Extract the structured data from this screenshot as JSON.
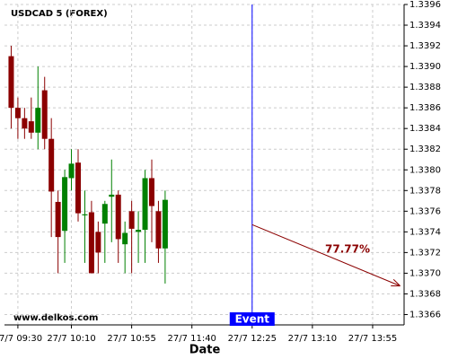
{
  "chart_data": {
    "type": "candlestick",
    "title": "USDCAD 5 (FOREX)",
    "x_label": "Date",
    "watermark": "www.delkos.com",
    "event_label": "Event",
    "event_x": 36,
    "up_color": "#008000",
    "down_color": "#8b0000",
    "event_color": "#0000ff",
    "x": [
      0,
      1,
      2,
      3,
      4,
      5,
      6,
      7,
      8,
      9,
      10,
      11,
      12,
      13,
      14,
      15,
      16,
      17,
      18,
      19,
      20,
      21,
      22,
      23
    ],
    "open": [
      1.3391,
      1.3386,
      1.3385,
      1.33847,
      1.33836,
      1.33877,
      1.3383,
      1.33769,
      1.33741,
      1.33792,
      1.33807,
      1.33756,
      1.33759,
      1.3374,
      1.33748,
      1.33774,
      1.33776,
      1.33728,
      1.3376,
      1.3374,
      1.33742,
      1.33792,
      1.3376,
      1.33724
    ],
    "high": [
      1.3392,
      1.3387,
      1.3386,
      1.3387,
      1.339,
      1.3389,
      1.3385,
      1.3378,
      1.338,
      1.3382,
      1.3382,
      1.3378,
      1.3377,
      1.3375,
      1.3377,
      1.3381,
      1.3378,
      1.3375,
      1.3377,
      1.3376,
      1.338,
      1.3381,
      1.3377,
      1.3378
    ],
    "low": [
      1.3384,
      1.3383,
      1.3383,
      1.3383,
      1.3382,
      1.3382,
      1.33735,
      1.337,
      1.3371,
      1.3378,
      1.3375,
      1.3371,
      1.337,
      1.337,
      1.3371,
      1.3373,
      1.3371,
      1.337,
      1.337,
      1.3371,
      1.3371,
      1.3373,
      1.3371,
      1.3369
    ],
    "close": [
      1.3386,
      1.3385,
      1.3384,
      1.33836,
      1.3386,
      1.3383,
      1.33779,
      1.33735,
      1.33793,
      1.33806,
      1.33758,
      1.33757,
      1.337,
      1.3372,
      1.33767,
      1.33776,
      1.33733,
      1.33739,
      1.33743,
      1.33742,
      1.33792,
      1.33765,
      1.33724,
      1.33771
    ],
    "xlim": [
      -1,
      58.7
    ],
    "xticks": [
      {
        "value": 1,
        "label": "27/7 09:30"
      },
      {
        "value": 9,
        "label": "27/7 10:10"
      },
      {
        "value": 18,
        "label": "27/7 10:55"
      },
      {
        "value": 27,
        "label": "27/7 11:40"
      },
      {
        "value": 36,
        "label": "27/7 12:25"
      },
      {
        "value": 45,
        "label": "27/7 13:10"
      },
      {
        "value": 54,
        "label": "27/7 13:55"
      }
    ],
    "ylim": [
      1.3365,
      1.3396
    ],
    "yticks": [
      {
        "value": 1.3366,
        "label": "1.3366"
      },
      {
        "value": 1.3368,
        "label": "1.3368"
      },
      {
        "value": 1.337,
        "label": "1.3370"
      },
      {
        "value": 1.3372,
        "label": "1.3372"
      },
      {
        "value": 1.3374,
        "label": "1.3374"
      },
      {
        "value": 1.3376,
        "label": "1.3376"
      },
      {
        "value": 1.3378,
        "label": "1.3378"
      },
      {
        "value": 1.338,
        "label": "1.3380"
      },
      {
        "value": 1.3382,
        "label": "1.3382"
      },
      {
        "value": 1.3384,
        "label": "1.3384"
      },
      {
        "value": 1.3386,
        "label": "1.3386"
      },
      {
        "value": 1.3388,
        "label": "1.3388"
      },
      {
        "value": 1.339,
        "label": "1.3390"
      },
      {
        "value": 1.3392,
        "label": "1.3392"
      },
      {
        "value": 1.3394,
        "label": "1.3394"
      },
      {
        "value": 1.3396,
        "label": "1.3396"
      }
    ],
    "grid": true,
    "arrow": {
      "x": [
        36,
        58
      ],
      "y": [
        1.33747,
        1.33688
      ],
      "label": "77.77%",
      "color": "#8b0000"
    }
  }
}
